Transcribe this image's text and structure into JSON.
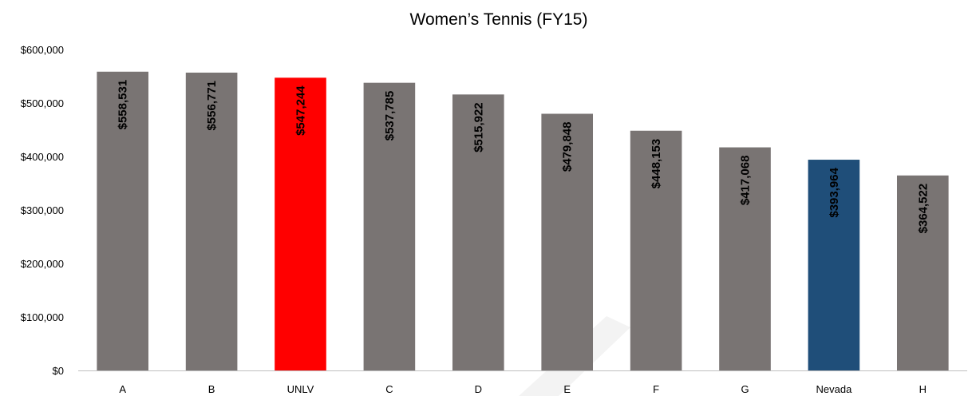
{
  "chart_data": {
    "type": "bar",
    "title": "Women’s Tennis (FY15)",
    "xlabel": "",
    "ylabel": "",
    "ylim": [
      0,
      600000
    ],
    "yticks": [
      0,
      100000,
      200000,
      300000,
      400000,
      500000,
      600000
    ],
    "ytick_labels": [
      "$0",
      "$100,000",
      "$200,000",
      "$300,000",
      "$400,000",
      "$500,000",
      "$600,000"
    ],
    "grid": false,
    "legend": "none",
    "categories": [
      "A",
      "B",
      "UNLV",
      "C",
      "D",
      "E",
      "F",
      "G",
      "Nevada",
      "H"
    ],
    "values": [
      558531,
      556771,
      547244,
      537785,
      515922,
      479848,
      448153,
      417068,
      393964,
      364522
    ],
    "value_labels": [
      "$558,531",
      "$556,771",
      "$547,244",
      "$537,785",
      "$515,922",
      "$479,848",
      "$448,153",
      "$417,068",
      "$393,964",
      "$364,522"
    ],
    "colors": [
      "#797473",
      "#797473",
      "#ff0000",
      "#797473",
      "#797473",
      "#797473",
      "#797473",
      "#797473",
      "#1f4e79",
      "#797473"
    ]
  }
}
